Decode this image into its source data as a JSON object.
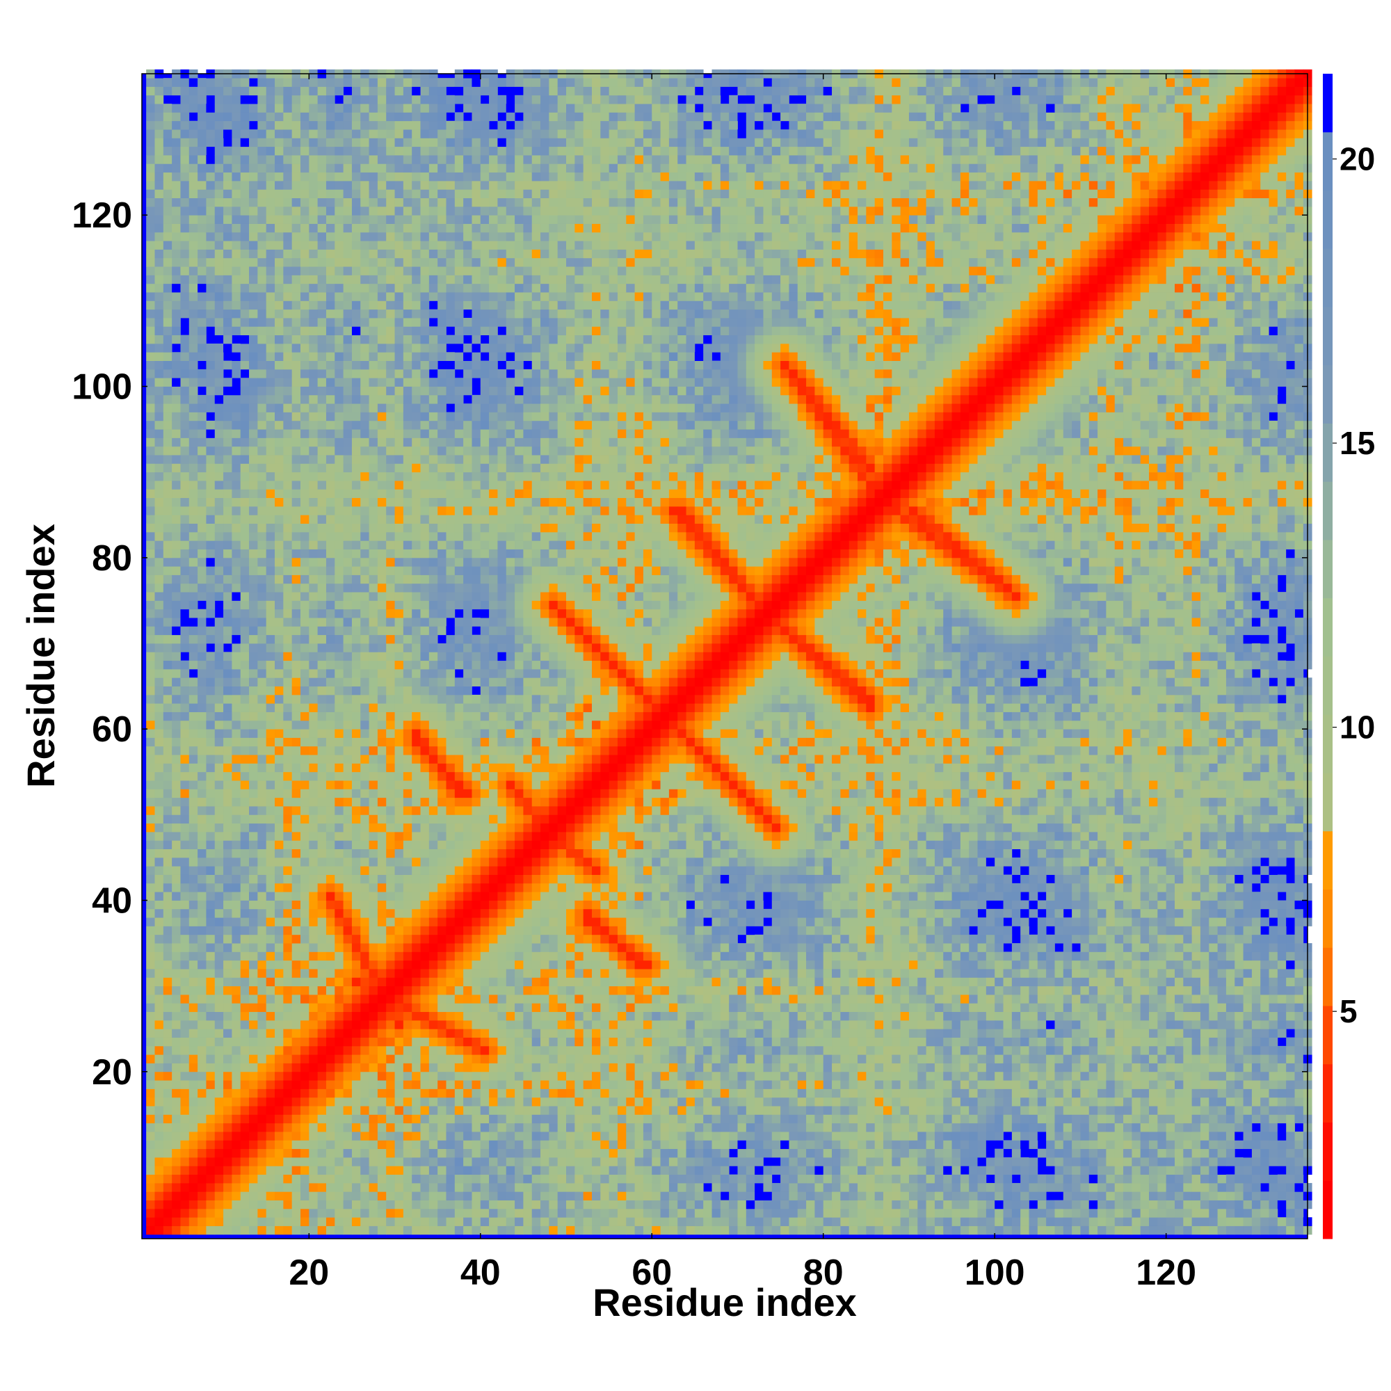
{
  "chart_data": {
    "type": "heatmap",
    "title": "",
    "xlabel": "Residue index",
    "ylabel": "Residue index",
    "n_residues": 136,
    "xlim": [
      1,
      136
    ],
    "ylim": [
      1,
      136
    ],
    "x_ticks": [
      "20",
      "40",
      "60",
      "80",
      "100",
      "120"
    ],
    "x_tick_values": [
      20,
      40,
      60,
      80,
      100,
      120
    ],
    "y_ticks": [
      "20",
      "40",
      "60",
      "80",
      "100",
      "120"
    ],
    "y_tick_values": [
      20,
      40,
      60,
      80,
      100,
      120
    ],
    "colorbar": {
      "range": [
        1,
        21.5
      ],
      "tick_labels": [
        "5",
        "10",
        "15",
        "20"
      ],
      "tick_values": [
        5,
        10,
        15,
        20
      ],
      "colors": {
        "near": "#ff0000",
        "mid_orange": "#ff8000",
        "amber": "#ffa000",
        "sage": "#a0c090",
        "steel": "#6a8fc0",
        "beyond": "#0000ff"
      }
    },
    "features": {
      "diagonal": "distance near 0 along residue i = j",
      "antiparallel_contacts": [
        {
          "from": [
            22,
            40
          ],
          "to": [
            30,
            25
          ]
        },
        {
          "from": [
            32,
            59
          ],
          "to": [
            37,
            52
          ]
        },
        {
          "from": [
            43,
            53
          ],
          "to": [
            47,
            48
          ]
        },
        {
          "from": [
            48,
            74
          ],
          "to": [
            60,
            62
          ]
        },
        {
          "from": [
            52,
            38
          ],
          "to": [
            58,
            32
          ]
        },
        {
          "from": [
            63,
            85
          ],
          "to": [
            72,
            74
          ]
        },
        {
          "from": [
            76,
            101
          ],
          "to": [
            85,
            90
          ]
        },
        {
          "from": [
            75,
            71
          ],
          "to": [
            85,
            62
          ]
        },
        {
          "from": [
            88,
            85
          ],
          "to": [
            102,
            75
          ]
        }
      ]
    }
  }
}
